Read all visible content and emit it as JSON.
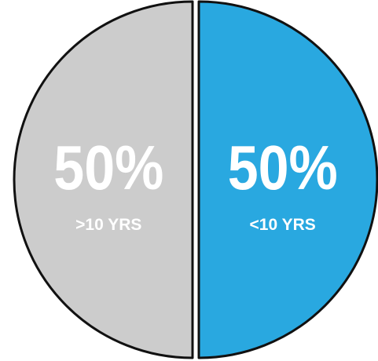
{
  "chart_data": {
    "type": "pie",
    "categories": [
      ">10 YRS",
      "<10 YRS"
    ],
    "values": [
      50,
      50
    ],
    "colors": [
      "#cccccc",
      "#29a8e0"
    ],
    "slices": [
      {
        "label": ">10 YRS",
        "value": 50,
        "value_label": "50%",
        "color": "#cccccc"
      },
      {
        "label": "<10 YRS",
        "value": 50,
        "value_label": "50%",
        "color": "#29a8e0"
      }
    ],
    "outline_color": "#111111"
  }
}
